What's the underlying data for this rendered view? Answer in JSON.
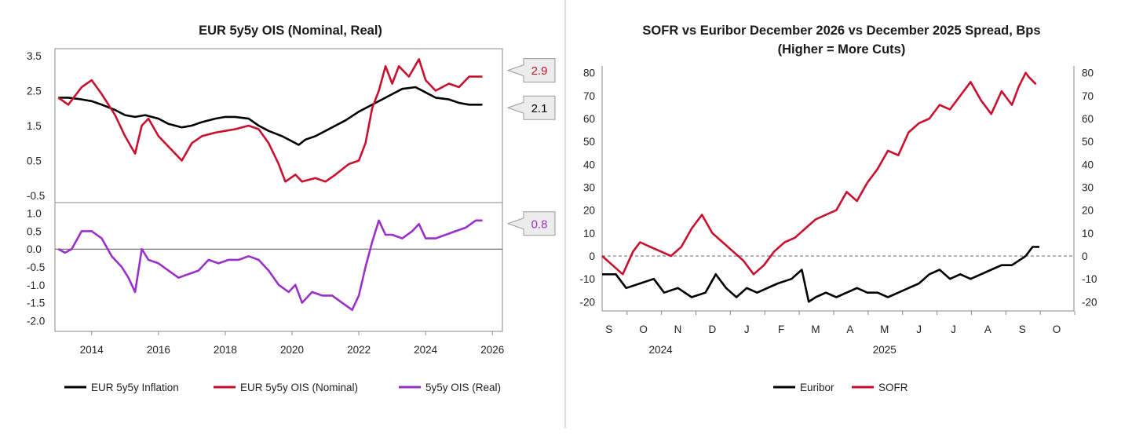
{
  "colors": {
    "inflation": "#000000",
    "nominal": "#c8102e",
    "real": "#9b30c8",
    "euribor": "#000000",
    "sofr": "#c8102e",
    "axis": "#888888",
    "callout_bg": "#ececec"
  },
  "chart_data": [
    {
      "type": "line",
      "title": "EUR 5y5y OIS (Nominal, Real)",
      "x_ticks": [
        "2014",
        "2016",
        "2018",
        "2020",
        "2022",
        "2024",
        "2026"
      ],
      "x_range": [
        2012.9,
        2026.3
      ],
      "panels": [
        {
          "name": "upper",
          "y_ticks": [
            "3.5",
            "2.5",
            "1.5",
            "0.5",
            "-0.5"
          ],
          "ylim": [
            -0.7,
            3.7
          ],
          "series": [
            {
              "name": "EUR 5y5y Inflation",
              "color_key": "inflation",
              "x": [
                2013.0,
                2013.3,
                2013.7,
                2014.0,
                2014.3,
                2014.7,
                2015.0,
                2015.3,
                2015.6,
                2016.0,
                2016.3,
                2016.7,
                2017.0,
                2017.3,
                2017.7,
                2018.0,
                2018.3,
                2018.7,
                2019.0,
                2019.3,
                2019.7,
                2020.0,
                2020.2,
                2020.4,
                2020.7,
                2021.0,
                2021.3,
                2021.6,
                2022.0,
                2022.3,
                2022.5,
                2022.8,
                2023.0,
                2023.3,
                2023.7,
                2024.0,
                2024.3,
                2024.7,
                2025.0,
                2025.3,
                2025.7
              ],
              "values": [
                2.3,
                2.3,
                2.25,
                2.2,
                2.1,
                1.95,
                1.8,
                1.75,
                1.8,
                1.7,
                1.55,
                1.45,
                1.5,
                1.6,
                1.7,
                1.75,
                1.75,
                1.7,
                1.5,
                1.35,
                1.2,
                1.05,
                0.95,
                1.1,
                1.2,
                1.35,
                1.5,
                1.65,
                1.9,
                2.05,
                2.15,
                2.3,
                2.4,
                2.55,
                2.6,
                2.45,
                2.3,
                2.25,
                2.15,
                2.1,
                2.1
              ]
            },
            {
              "name": "EUR 5y5y OIS (Nominal)",
              "color_key": "nominal",
              "x": [
                2013.0,
                2013.3,
                2013.7,
                2014.0,
                2014.3,
                2014.7,
                2015.0,
                2015.3,
                2015.5,
                2015.7,
                2016.0,
                2016.3,
                2016.7,
                2017.0,
                2017.3,
                2017.7,
                2018.0,
                2018.3,
                2018.7,
                2019.0,
                2019.3,
                2019.6,
                2019.8,
                2020.1,
                2020.3,
                2020.7,
                2021.0,
                2021.3,
                2021.7,
                2022.0,
                2022.2,
                2022.4,
                2022.6,
                2022.8,
                2023.0,
                2023.2,
                2023.5,
                2023.8,
                2024.0,
                2024.3,
                2024.7,
                2025.0,
                2025.3,
                2025.7
              ],
              "values": [
                2.3,
                2.1,
                2.6,
                2.8,
                2.4,
                1.8,
                1.2,
                0.7,
                1.5,
                1.7,
                1.2,
                0.9,
                0.5,
                1.0,
                1.2,
                1.3,
                1.35,
                1.4,
                1.5,
                1.4,
                1.0,
                0.4,
                -0.1,
                0.1,
                -0.1,
                0.0,
                -0.1,
                0.1,
                0.4,
                0.5,
                1.0,
                2.0,
                2.5,
                3.2,
                2.7,
                3.2,
                2.9,
                3.4,
                2.8,
                2.5,
                2.7,
                2.6,
                2.9,
                2.9
              ]
            }
          ],
          "callouts": [
            {
              "label": "2.9",
              "value": 2.9,
              "color_key": "nominal"
            },
            {
              "label": "2.1",
              "value": 2.1,
              "color_key": "inflation"
            }
          ]
        },
        {
          "name": "lower",
          "y_ticks": [
            "1.0",
            "0.5",
            "0.0",
            "-0.5",
            "-1.0",
            "-1.5",
            "-2.0"
          ],
          "ylim": [
            -2.3,
            1.3
          ],
          "zero_line": true,
          "series": [
            {
              "name": "5y5y OIS (Real)",
              "color_key": "real",
              "x": [
                2013.0,
                2013.2,
                2013.4,
                2013.7,
                2014.0,
                2014.3,
                2014.6,
                2014.9,
                2015.1,
                2015.3,
                2015.5,
                2015.7,
                2016.0,
                2016.3,
                2016.6,
                2016.9,
                2017.2,
                2017.5,
                2017.8,
                2018.1,
                2018.4,
                2018.7,
                2019.0,
                2019.3,
                2019.6,
                2019.9,
                2020.1,
                2020.3,
                2020.6,
                2020.9,
                2021.2,
                2021.5,
                2021.8,
                2022.0,
                2022.2,
                2022.4,
                2022.6,
                2022.8,
                2023.0,
                2023.3,
                2023.6,
                2023.8,
                2024.0,
                2024.3,
                2024.6,
                2024.9,
                2025.2,
                2025.5,
                2025.7
              ],
              "values": [
                0.0,
                -0.1,
                0.0,
                0.5,
                0.5,
                0.3,
                -0.2,
                -0.5,
                -0.8,
                -1.2,
                0.0,
                -0.3,
                -0.4,
                -0.6,
                -0.8,
                -0.7,
                -0.6,
                -0.3,
                -0.4,
                -0.3,
                -0.3,
                -0.2,
                -0.3,
                -0.6,
                -1.0,
                -1.2,
                -1.0,
                -1.5,
                -1.2,
                -1.3,
                -1.3,
                -1.5,
                -1.7,
                -1.3,
                -0.5,
                0.2,
                0.8,
                0.4,
                0.4,
                0.3,
                0.5,
                0.7,
                0.3,
                0.3,
                0.4,
                0.5,
                0.6,
                0.8,
                0.8
              ]
            }
          ],
          "callouts": [
            {
              "label": "0.8",
              "value": 0.8,
              "color_key": "real"
            }
          ]
        }
      ],
      "legend": [
        {
          "label": "EUR 5y5y Inflation",
          "color_key": "inflation"
        },
        {
          "label": "EUR 5y5y OIS (Nominal)",
          "color_key": "nominal"
        },
        {
          "label": "5y5y OIS (Real)",
          "color_key": "real"
        }
      ]
    },
    {
      "type": "line",
      "title_lines": [
        "SOFR vs Euribor December 2026 vs December 2025 Spread, Bps",
        "(Higher = More Cuts)"
      ],
      "x_ticks": [
        "S",
        "O",
        "N",
        "D",
        "J",
        "F",
        "M",
        "A",
        "M",
        "J",
        "J",
        "A",
        "S",
        "O"
      ],
      "x_year_labels": [
        {
          "label": "2024",
          "at": 1.5
        },
        {
          "label": "2025",
          "at": 8
        }
      ],
      "x_range": [
        -0.2,
        13.5
      ],
      "left_y_ticks": [
        "80",
        "70",
        "60",
        "50",
        "40",
        "30",
        "20",
        "10",
        "0",
        "-10",
        "-20"
      ],
      "left_ylim": [
        -24,
        83
      ],
      "right_y_ticks": [
        "80",
        "70",
        "60",
        "50",
        "40",
        "30",
        "20",
        "10",
        "0",
        "-10",
        "-20"
      ],
      "right_ylim": [
        -24,
        83
      ],
      "zero_line_dashed": true,
      "series": [
        {
          "name": "Euribor",
          "axis": "left",
          "color_key": "euribor",
          "x": [
            -0.2,
            0.2,
            0.5,
            0.9,
            1.3,
            1.6,
            2.0,
            2.4,
            2.8,
            3.1,
            3.4,
            3.7,
            4.0,
            4.3,
            4.6,
            4.9,
            5.3,
            5.6,
            5.8,
            6.0,
            6.3,
            6.6,
            6.9,
            7.2,
            7.5,
            7.8,
            8.1,
            8.4,
            8.7,
            9.0,
            9.3,
            9.6,
            9.9,
            10.2,
            10.5,
            10.8,
            11.1,
            11.4,
            11.7,
            11.9,
            12.1,
            12.3,
            12.5
          ],
          "values": [
            -8,
            -8,
            -14,
            -12,
            -10,
            -16,
            -14,
            -18,
            -16,
            -8,
            -14,
            -18,
            -14,
            -16,
            -14,
            -12,
            -10,
            -6,
            -20,
            -18,
            -16,
            -18,
            -16,
            -14,
            -16,
            -16,
            -18,
            -16,
            -14,
            -12,
            -8,
            -6,
            -10,
            -8,
            -10,
            -8,
            -6,
            -4,
            -4,
            -2,
            0,
            4,
            4
          ]
        },
        {
          "name": "SOFR",
          "axis": "right",
          "color_key": "sofr",
          "x": [
            -0.2,
            0.1,
            0.4,
            0.7,
            0.9,
            1.2,
            1.5,
            1.8,
            2.1,
            2.4,
            2.7,
            3.0,
            3.3,
            3.6,
            3.9,
            4.2,
            4.5,
            4.8,
            5.1,
            5.4,
            5.7,
            6.0,
            6.3,
            6.6,
            6.9,
            7.2,
            7.5,
            7.8,
            8.1,
            8.4,
            8.7,
            9.0,
            9.3,
            9.6,
            9.9,
            10.2,
            10.5,
            10.8,
            11.1,
            11.4,
            11.7,
            11.9,
            12.1,
            12.2,
            12.4
          ],
          "values": [
            0,
            -4,
            -8,
            2,
            6,
            4,
            2,
            0,
            4,
            12,
            18,
            10,
            6,
            2,
            -2,
            -8,
            -4,
            2,
            6,
            8,
            12,
            16,
            18,
            20,
            28,
            24,
            32,
            38,
            46,
            44,
            54,
            58,
            60,
            66,
            64,
            70,
            76,
            68,
            62,
            72,
            66,
            74,
            80,
            78,
            75
          ]
        }
      ],
      "legend": [
        {
          "label": "Euribor",
          "color_key": "euribor"
        },
        {
          "label": "SOFR",
          "color_key": "sofr"
        }
      ]
    }
  ]
}
